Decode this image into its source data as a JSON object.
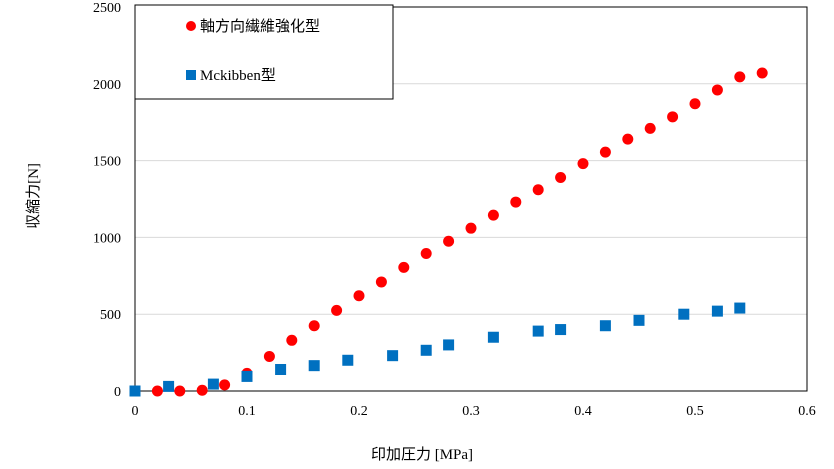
{
  "chart_data": {
    "type": "scatter",
    "title": "",
    "xlabel": "印加圧力 [MPa]",
    "ylabel": "収縮力[N]",
    "xlim": [
      0,
      0.6
    ],
    "ylim": [
      0,
      2500
    ],
    "x_ticks": [
      0,
      0.1,
      0.2,
      0.3,
      0.4,
      0.5,
      0.6
    ],
    "y_ticks": [
      0,
      500,
      1000,
      1500,
      2000,
      2500
    ],
    "x_tick_labels": [
      "0",
      "0.1",
      "0.2",
      "0.3",
      "0.4",
      "0.5",
      "0.6"
    ],
    "y_tick_labels": [
      "0",
      "500",
      "1000",
      "1500",
      "2000",
      "2500"
    ],
    "grid": "horizontal",
    "legend_position": "top-left",
    "series": [
      {
        "name": "軸方向繊維強化型",
        "marker": "circle",
        "color": "#ff0000",
        "x": [
          0,
          0.02,
          0.04,
          0.06,
          0.08,
          0.1,
          0.12,
          0.14,
          0.16,
          0.18,
          0.2,
          0.22,
          0.24,
          0.26,
          0.28,
          0.3,
          0.32,
          0.34,
          0.36,
          0.38,
          0.4,
          0.42,
          0.44,
          0.46,
          0.48,
          0.5,
          0.52,
          0.54,
          0.56
        ],
        "y": [
          0,
          0,
          0,
          5,
          40,
          115,
          225,
          330,
          425,
          525,
          620,
          710,
          805,
          895,
          975,
          1060,
          1145,
          1230,
          1310,
          1390,
          1480,
          1555,
          1640,
          1710,
          1785,
          1870,
          1960,
          2045,
          2070
        ]
      },
      {
        "name": "Mckibben型",
        "marker": "square",
        "color": "#0070c0",
        "x": [
          0,
          0.03,
          0.07,
          0.1,
          0.13,
          0.16,
          0.19,
          0.23,
          0.26,
          0.28,
          0.32,
          0.36,
          0.38,
          0.42,
          0.45,
          0.49,
          0.52,
          0.54
        ],
        "y": [
          0,
          30,
          45,
          95,
          140,
          165,
          200,
          230,
          265,
          300,
          350,
          390,
          400,
          425,
          460,
          500,
          520,
          540
        ]
      }
    ]
  }
}
